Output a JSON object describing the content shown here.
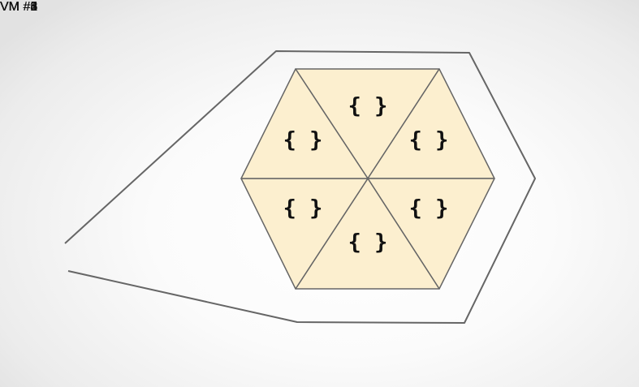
{
  "vm_labels": {
    "vm1": "VM #1",
    "vm2": "VM #2",
    "vm3": "VM #3",
    "vm4": "VM #4",
    "vm5": "VM #5",
    "vm6": "VM #6"
  },
  "hexagon": {
    "segments": [
      {
        "name": "top",
        "symbol": "{ }"
      },
      {
        "name": "upper-right",
        "symbol": "{ }"
      },
      {
        "name": "lower-right",
        "symbol": "{ }"
      },
      {
        "name": "bottom",
        "symbol": "{ }"
      },
      {
        "name": "lower-left",
        "symbol": "{ }"
      },
      {
        "name": "upper-left",
        "symbol": "{ }"
      }
    ]
  },
  "colors": {
    "segment_fill": "#fcefcf",
    "line": "#666666",
    "text": "#111111"
  }
}
